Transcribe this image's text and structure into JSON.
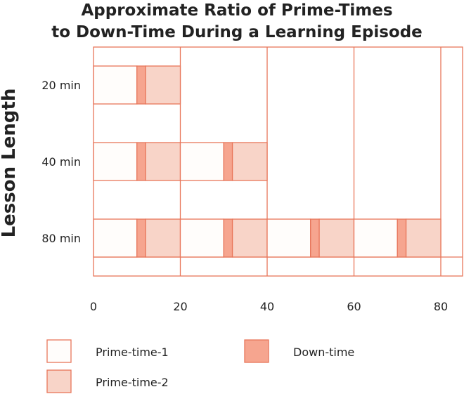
{
  "chart_data": {
    "type": "bar",
    "title_lines": [
      "Approximate Ratio of Prime-Times",
      "to Down-Time During a Learning Episode"
    ],
    "xlabel": "",
    "ylabel": "Lesson Length",
    "xlim": [
      0,
      85
    ],
    "xticks": [
      "0",
      "20",
      "40",
      "60",
      "80"
    ],
    "xtick_values": [
      0,
      20,
      40,
      60,
      80
    ],
    "categories": [
      "20 min",
      "40 min",
      "80 min"
    ],
    "category_lengths": [
      20,
      40,
      80
    ],
    "pattern_period": 20,
    "series": [
      {
        "name": "Prime-time-1",
        "segment": [
          0,
          10
        ],
        "color": "#fffdfb"
      },
      {
        "name": "Down-time",
        "segment": [
          10,
          12
        ],
        "color": "#f6a58f"
      },
      {
        "name": "Prime-time-2",
        "segment": [
          12,
          20
        ],
        "color": "#f8d4c8"
      }
    ],
    "legend": [
      {
        "label": "Prime-time-1",
        "color": "#fffdfb"
      },
      {
        "label": "Down-time",
        "color": "#f6a58f"
      },
      {
        "label": "Prime-time-2",
        "color": "#f8d4c8"
      }
    ],
    "legend_position": "bottom",
    "grid": true,
    "colors": {
      "line": "#e8765a",
      "text": "#222222"
    }
  }
}
